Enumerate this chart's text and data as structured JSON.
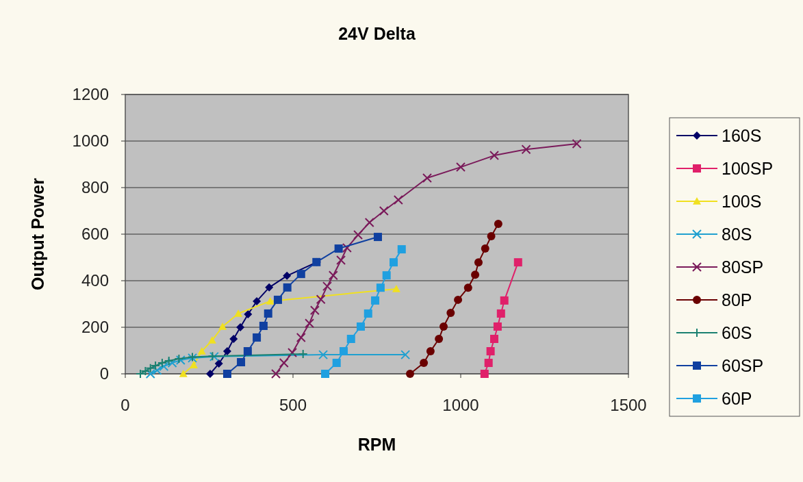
{
  "chart_data": {
    "type": "line",
    "title": "24V Delta",
    "xlabel": "RPM",
    "ylabel": "Output Power",
    "xlim": [
      0,
      1500
    ],
    "xticks": [
      0,
      500,
      1000,
      1500
    ],
    "ylim": [
      0,
      1200
    ],
    "yticks": [
      0,
      200,
      400,
      600,
      800,
      1000,
      1200
    ],
    "grid": "y",
    "legend": "right",
    "series": [
      {
        "name": "160S",
        "color": "#000066",
        "marker": "diamond",
        "x": [
          253,
          279,
          304,
          323,
          343,
          366,
          392,
          429,
          482,
          571
        ],
        "values": [
          0,
          44,
          97,
          150,
          200,
          256,
          312,
          371,
          421,
          480
        ]
      },
      {
        "name": "100SP",
        "color": "#e0206a",
        "marker": "square",
        "x": [
          1071,
          1083,
          1089,
          1100,
          1110,
          1120,
          1130,
          1171
        ],
        "values": [
          0,
          47,
          97,
          150,
          203,
          259,
          315,
          479
        ]
      },
      {
        "name": "100S",
        "color": "#f0e020",
        "marker": "triangle",
        "x": [
          173,
          204,
          228,
          259,
          290,
          337,
          432,
          808
        ],
        "values": [
          0,
          38,
          97,
          144,
          203,
          259,
          312,
          365
        ]
      },
      {
        "name": "80S",
        "color": "#1fa0d0",
        "marker": "cross",
        "x": [
          75,
          95,
          115,
          140,
          165,
          200,
          265,
          590,
          835
        ],
        "values": [
          0,
          15,
          32,
          47,
          59,
          68,
          74,
          82,
          82
        ]
      },
      {
        "name": "80SP",
        "color": "#7a1a5a",
        "marker": "cross",
        "x": [
          449,
          473,
          498,
          524,
          549,
          565,
          583,
          602,
          620,
          643,
          661,
          694,
          728,
          771,
          814,
          900,
          1000,
          1100,
          1195,
          1346
        ],
        "values": [
          0,
          47,
          91,
          156,
          217,
          273,
          320,
          376,
          423,
          488,
          541,
          597,
          650,
          700,
          747,
          841,
          888,
          938,
          964,
          988
        ]
      },
      {
        "name": "80P",
        "color": "#6a0000",
        "marker": "circle",
        "x": [
          849,
          890,
          910,
          935,
          949,
          970,
          992,
          1022,
          1043,
          1053,
          1073,
          1091,
          1112
        ],
        "values": [
          0,
          47,
          97,
          150,
          203,
          262,
          318,
          370,
          426,
          479,
          538,
          591,
          644
        ]
      },
      {
        "name": "60S",
        "color": "#1a8070",
        "marker": "plus",
        "x": [
          45,
          60,
          75,
          90,
          110,
          130,
          160,
          200,
          260,
          530
        ],
        "values": [
          0,
          12,
          24,
          35,
          47,
          56,
          65,
          72,
          76,
          85
        ]
      },
      {
        "name": "60SP",
        "color": "#1040a0",
        "marker": "square",
        "x": [
          304,
          345,
          365,
          392,
          412,
          426,
          455,
          483,
          524,
          570,
          636,
          753
        ],
        "values": [
          0,
          50,
          97,
          156,
          206,
          259,
          318,
          371,
          429,
          480,
          538,
          588
        ]
      },
      {
        "name": "60P",
        "color": "#20a0e0",
        "marker": "square",
        "x": [
          596,
          630,
          651,
          673,
          702,
          724,
          745,
          761,
          779,
          800,
          824
        ],
        "values": [
          0,
          47,
          97,
          150,
          203,
          259,
          315,
          370,
          423,
          479,
          535
        ]
      }
    ]
  }
}
